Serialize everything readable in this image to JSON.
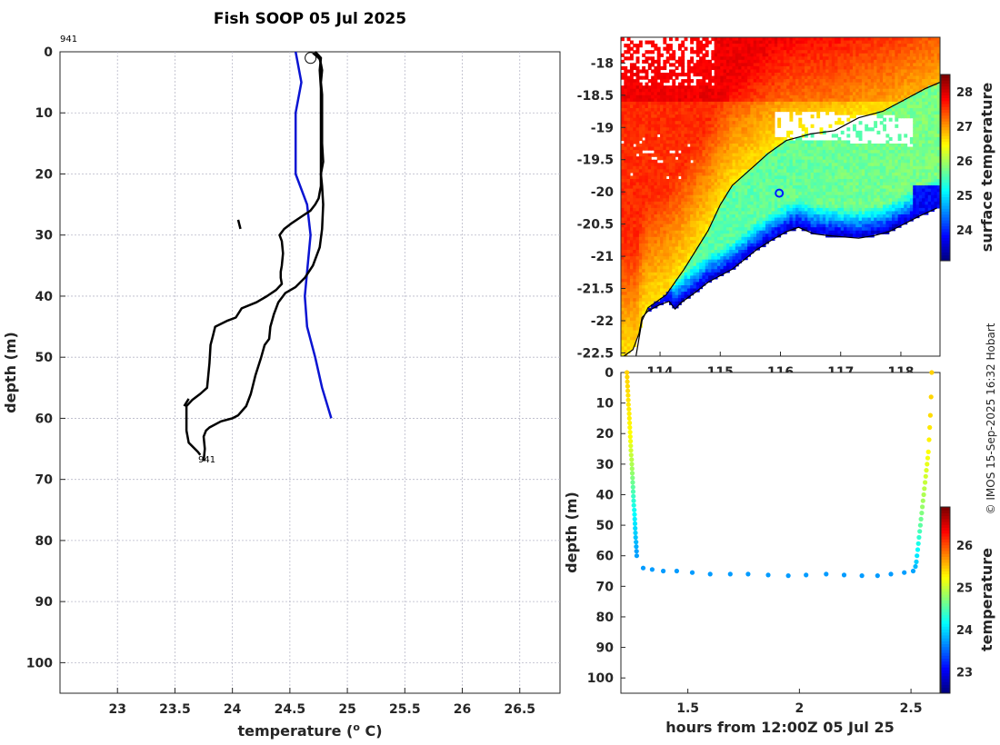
{
  "title": "Fish SOOP 05 Jul 2025",
  "credit": "© IMOS 15-Sep-2025 16:32 Hobart",
  "profile_id": "941",
  "chart_data": [
    {
      "name": "profile",
      "type": "line",
      "xlabel": "temperature (° C)",
      "ylabel": "depth (m)",
      "xlim": [
        22.5,
        26.85
      ],
      "ylim": [
        0,
        105
      ],
      "y_reversed": true,
      "grid": true,
      "xticks": [
        23,
        23.5,
        24,
        24.5,
        25,
        25.5,
        26,
        26.5
      ],
      "yticks": [
        0,
        10,
        20,
        30,
        40,
        50,
        60,
        70,
        80,
        90,
        100
      ],
      "start_marker": {
        "x": 24.68,
        "y": 1
      },
      "start_label": "941",
      "end_label": "941",
      "series": [
        {
          "name": "climatology",
          "color": "#0a14d2",
          "x": [
            24.55,
            24.6,
            24.55,
            24.55,
            24.65,
            24.68,
            24.63,
            24.65,
            24.72,
            24.78,
            24.86
          ],
          "y": [
            0,
            5,
            10,
            20,
            25,
            30,
            40,
            45,
            50,
            55,
            60
          ]
        },
        {
          "name": "cast-down",
          "color": "#000000",
          "x": [
            24.72,
            24.77,
            24.76,
            24.77,
            24.77,
            24.77,
            24.77,
            24.77,
            24.76,
            24.75,
            24.72,
            24.68,
            24.6,
            24.52,
            24.45,
            24.41,
            24.43,
            24.44,
            24.43,
            24.42,
            24.42,
            24.43,
            24.38,
            24.3,
            24.21,
            24.08,
            24.03,
            23.96,
            23.85,
            23.83,
            23.81,
            23.8,
            23.79,
            23.78,
            23.72,
            23.65,
            23.6,
            23.6,
            23.6,
            23.62,
            23.7,
            23.72
          ],
          "y": [
            0,
            1,
            3,
            6,
            10,
            14,
            18,
            22,
            23,
            24,
            25,
            26,
            27,
            28,
            29,
            30,
            31,
            33,
            35,
            36,
            37,
            38,
            39,
            40,
            41,
            42,
            43.5,
            44,
            45,
            46.5,
            48,
            51,
            53,
            55,
            56,
            57,
            58,
            60,
            62,
            64,
            65.5,
            66
          ]
        },
        {
          "name": "cast-up",
          "color": "#000000",
          "x": [
            23.75,
            23.76,
            23.75,
            23.77,
            23.8,
            23.9,
            24.0,
            24.05,
            24.12,
            24.16,
            24.2,
            24.25,
            24.28,
            24.32,
            24.33,
            24.36,
            24.4,
            24.46,
            24.55,
            24.63,
            24.7,
            24.76,
            24.78,
            24.79,
            24.78,
            24.77,
            24.79,
            24.78,
            24.78,
            24.78,
            24.78,
            24.77,
            24.78,
            24.77,
            24.76,
            24.74,
            24.72,
            24.7
          ],
          "y": [
            67,
            65,
            63,
            62,
            61.5,
            60.5,
            60,
            59.5,
            58,
            56,
            53,
            50,
            48,
            47,
            45,
            43,
            41,
            39.5,
            38.5,
            37,
            35,
            32,
            29,
            25,
            22,
            20,
            18,
            15,
            12,
            10,
            7,
            5,
            3,
            2,
            1.2,
            0.8,
            0.5,
            0.2
          ]
        }
      ]
    },
    {
      "name": "map",
      "type": "heatmap",
      "xlim": [
        113.35,
        118.65
      ],
      "ylim": [
        -22.55,
        -17.6
      ],
      "xticks": [
        114,
        115,
        116,
        117,
        118
      ],
      "yticks": [
        -18,
        -18.5,
        -19,
        -19.5,
        -20,
        -20.5,
        -21,
        -21.5,
        -22,
        -22.5
      ],
      "colorbar_label": "surface temperature",
      "colorbar_range": [
        23.1,
        28.5
      ],
      "colorbar_ticks": [
        24,
        25,
        26,
        27,
        28
      ],
      "position_marker": {
        "lon": 115.98,
        "lat": -20.02
      },
      "coastline": [
        [
          113.4,
          -22.55
        ],
        [
          113.55,
          -22.45
        ],
        [
          113.65,
          -22.2
        ],
        [
          113.7,
          -21.95
        ],
        [
          113.8,
          -21.85
        ],
        [
          114.0,
          -21.75
        ],
        [
          114.15,
          -21.7
        ],
        [
          114.25,
          -21.82
        ],
        [
          114.35,
          -21.72
        ],
        [
          114.6,
          -21.55
        ],
        [
          114.8,
          -21.4
        ],
        [
          115.0,
          -21.3
        ],
        [
          115.2,
          -21.2
        ],
        [
          115.4,
          -21.05
        ],
        [
          115.6,
          -20.9
        ],
        [
          115.85,
          -20.75
        ],
        [
          116.1,
          -20.62
        ],
        [
          116.3,
          -20.55
        ],
        [
          116.55,
          -20.65
        ],
        [
          116.8,
          -20.68
        ],
        [
          117.05,
          -20.7
        ],
        [
          117.3,
          -20.72
        ],
        [
          117.55,
          -20.68
        ],
        [
          117.8,
          -20.62
        ],
        [
          118.05,
          -20.5
        ],
        [
          118.3,
          -20.38
        ],
        [
          118.6,
          -20.25
        ]
      ],
      "isobath": [
        [
          113.6,
          -22.55
        ],
        [
          113.7,
          -22.0
        ],
        [
          113.8,
          -21.8
        ],
        [
          114.1,
          -21.6
        ],
        [
          114.4,
          -21.2
        ],
        [
          114.6,
          -20.9
        ],
        [
          114.8,
          -20.6
        ],
        [
          115.0,
          -20.2
        ],
        [
          115.2,
          -19.9
        ],
        [
          115.5,
          -19.65
        ],
        [
          115.8,
          -19.4
        ],
        [
          116.1,
          -19.2
        ],
        [
          116.5,
          -19.1
        ],
        [
          116.9,
          -19.05
        ],
        [
          117.3,
          -18.85
        ],
        [
          117.7,
          -18.75
        ],
        [
          118.1,
          -18.55
        ],
        [
          118.4,
          -18.4
        ],
        [
          118.65,
          -18.3
        ]
      ]
    },
    {
      "name": "time-depth",
      "type": "scatter",
      "xlabel": "hours from 12:00Z 05 Jul 25",
      "ylabel": "depth (m)",
      "xlim": [
        1.2,
        2.63
      ],
      "ylim": [
        0,
        105
      ],
      "y_reversed": true,
      "xticks": [
        1.5,
        2,
        2.5
      ],
      "yticks": [
        0,
        10,
        20,
        30,
        40,
        50,
        60,
        70,
        80,
        90,
        100
      ],
      "colorbar_label": "temperature",
      "colorbar_range": [
        22.5,
        26.9
      ],
      "colorbar_ticks": [
        23,
        24,
        25,
        26
      ],
      "x": [
        1.227,
        1.228,
        1.229,
        1.23,
        1.231,
        1.232,
        1.233,
        1.234,
        1.236,
        1.237,
        1.238,
        1.239,
        1.24,
        1.241,
        1.242,
        1.243,
        1.244,
        1.245,
        1.246,
        1.248,
        1.249,
        1.25,
        1.251,
        1.252,
        1.253,
        1.254,
        1.255,
        1.256,
        1.257,
        1.258,
        1.26,
        1.261,
        1.262,
        1.263,
        1.264,
        1.265,
        1.266,
        1.268,
        1.269,
        1.27,
        1.271,
        1.3,
        1.34,
        1.39,
        1.45,
        1.52,
        1.6,
        1.69,
        1.77,
        1.86,
        1.95,
        2.03,
        2.12,
        2.2,
        2.28,
        2.35,
        2.41,
        2.47,
        2.51,
        2.52,
        2.524,
        2.527,
        2.53,
        2.533,
        2.536,
        2.539,
        2.542,
        2.545,
        2.548,
        2.551,
        2.554,
        2.557,
        2.56,
        2.563,
        2.566,
        2.569,
        2.572,
        2.575,
        2.578,
        2.581,
        2.584,
        2.587,
        2.59,
        2.593
      ],
      "y": [
        0,
        1.5,
        3,
        4.5,
        6,
        7.5,
        9,
        10.5,
        12,
        13.5,
        15,
        16.5,
        18,
        19.5,
        21,
        22.5,
        24,
        25.5,
        27,
        28.5,
        30,
        31.5,
        33,
        34.5,
        36,
        37.5,
        39,
        40.5,
        42,
        43.5,
        45,
        46.5,
        48,
        49.5,
        51,
        52.5,
        54,
        55.5,
        57,
        58.5,
        60,
        64,
        64.5,
        65,
        65,
        65.5,
        66,
        66,
        66,
        66.3,
        66.5,
        66.3,
        66,
        66.3,
        66.5,
        66.5,
        66,
        65.5,
        65,
        63.5,
        62,
        60,
        58,
        56,
        54,
        52,
        50,
        48,
        46,
        44,
        42,
        40,
        38,
        36,
        34,
        32,
        30,
        28,
        26,
        22,
        18,
        14,
        8,
        0
      ],
      "temp": [
        25.45,
        25.43,
        25.42,
        25.41,
        25.4,
        25.38,
        25.36,
        25.34,
        25.33,
        25.32,
        25.31,
        25.29,
        25.27,
        25.25,
        25.23,
        25.2,
        25.1,
        25.05,
        25.0,
        24.95,
        24.9,
        24.85,
        24.78,
        24.7,
        24.62,
        24.55,
        24.48,
        24.4,
        24.33,
        24.27,
        24.2,
        24.15,
        24.1,
        24.05,
        24.0,
        23.95,
        23.9,
        23.85,
        23.8,
        23.75,
        23.74,
        23.72,
        23.72,
        23.72,
        23.72,
        23.72,
        23.72,
        23.72,
        23.72,
        23.72,
        23.72,
        23.72,
        23.72,
        23.72,
        23.72,
        23.72,
        23.72,
        23.73,
        23.76,
        23.85,
        23.95,
        24.05,
        24.15,
        24.25,
        24.35,
        24.45,
        24.55,
        24.62,
        24.7,
        24.8,
        24.85,
        24.9,
        24.95,
        25.0,
        25.05,
        25.1,
        25.15,
        25.2,
        25.25,
        25.3,
        25.35,
        25.4,
        25.43,
        25.45
      ]
    }
  ]
}
